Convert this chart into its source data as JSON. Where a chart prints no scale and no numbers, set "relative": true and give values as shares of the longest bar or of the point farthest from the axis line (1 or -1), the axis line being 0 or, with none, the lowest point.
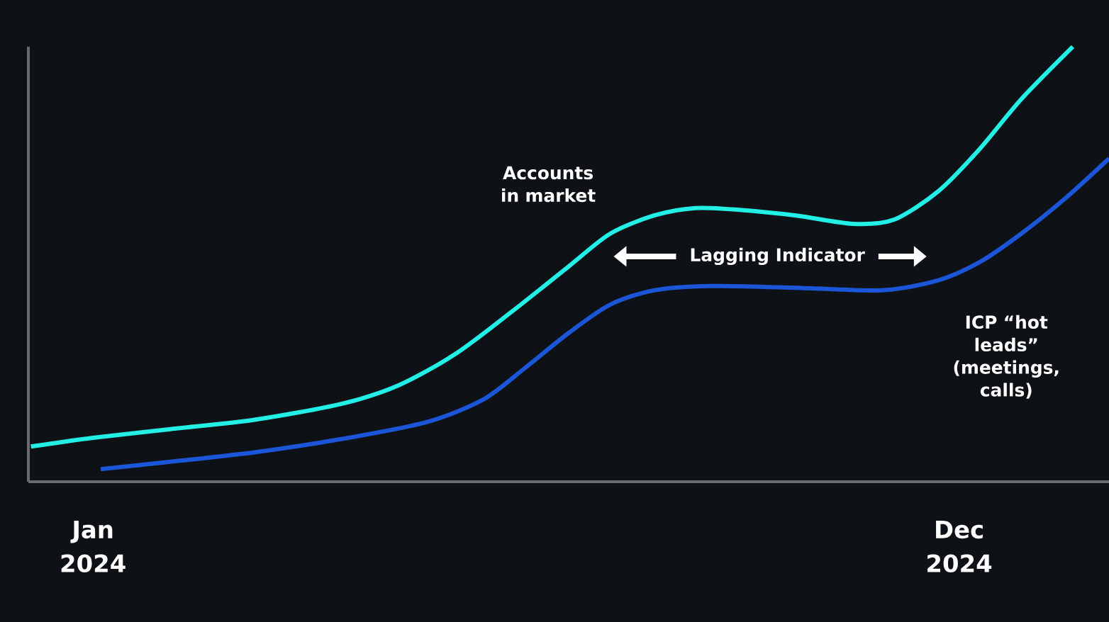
{
  "chart_data": {
    "type": "line",
    "relative": true,
    "xlim": [
      "2023-12-07",
      "2025-01-28"
    ],
    "xticks": [
      {
        "value": "2024-01-01",
        "label": "Jan 2024"
      },
      {
        "value": "2024-12-01",
        "label": "Dec 2024"
      }
    ],
    "annotations": [
      "Lagging Indicator"
    ],
    "series": [
      {
        "name": "Accounts in market",
        "color": "#22efe6",
        "x": [
          "2023-12-08",
          "2024-01-01",
          "2024-01-31",
          "2024-03-04",
          "2024-04-06",
          "2024-04-28",
          "2024-05-20",
          "2024-06-11",
          "2024-07-03",
          "2024-07-19",
          "2024-08-05",
          "2024-08-21",
          "2024-09-07",
          "2024-09-29",
          "2024-10-21",
          "2024-11-06",
          "2024-11-23",
          "2024-12-09",
          "2024-12-25",
          "2025-01-14"
        ],
        "values": [
          0.081,
          0.101,
          0.121,
          0.143,
          0.179,
          0.221,
          0.293,
          0.391,
          0.495,
          0.57,
          0.612,
          0.629,
          0.625,
          0.612,
          0.593,
          0.603,
          0.668,
          0.765,
          0.879,
          1
        ]
      },
      {
        "name": "ICP “hot leads” (meetings, calls)",
        "color": "#1b56d8",
        "x": [
          "2024-01-04",
          "2024-01-31",
          "2024-03-04",
          "2024-04-06",
          "2024-05-09",
          "2024-05-31",
          "2024-06-16",
          "2024-07-03",
          "2024-07-19",
          "2024-08-05",
          "2024-08-27",
          "2024-09-29",
          "2024-11-01",
          "2024-11-23",
          "2024-12-09",
          "2024-12-25",
          "2025-01-11",
          "2025-01-28"
        ],
        "values": [
          0.029,
          0.046,
          0.068,
          0.098,
          0.137,
          0.189,
          0.261,
          0.342,
          0.407,
          0.44,
          0.45,
          0.446,
          0.44,
          0.463,
          0.505,
          0.57,
          0.651,
          0.743
        ]
      }
    ]
  }
}
